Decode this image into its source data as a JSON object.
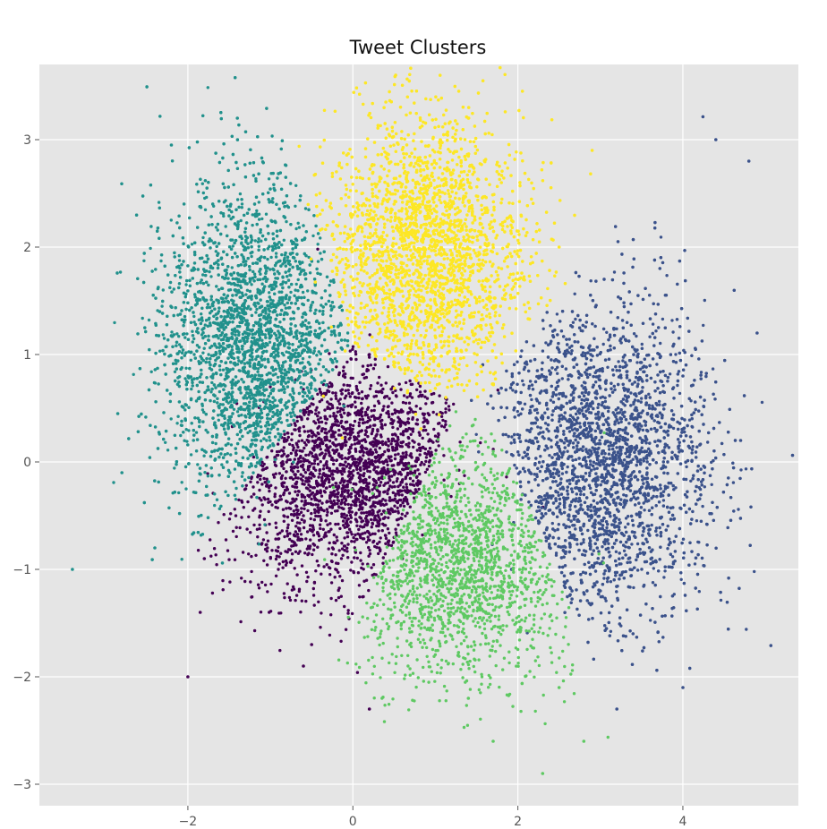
{
  "chart_data": {
    "type": "scatter",
    "title": "Tweet Clusters",
    "xlabel": "",
    "ylabel": "",
    "xlim": [
      -3.8,
      5.4
    ],
    "ylim": [
      -3.2,
      3.7
    ],
    "x_ticks": [
      -2,
      0,
      2,
      4
    ],
    "y_ticks": [
      -3,
      -2,
      -1,
      0,
      1,
      2,
      3
    ],
    "x_tick_labels": [
      "−2",
      "0",
      "2",
      "4"
    ],
    "y_tick_labels": [
      "−3",
      "−2",
      "−1",
      "0",
      "1",
      "2",
      "3"
    ],
    "grid": true,
    "legend": "none",
    "colors": {
      "background": "#e5e5e5",
      "grid": "#ffffff",
      "page": "#ffffff"
    },
    "series": [
      {
        "color": "#440154",
        "center": [
          0.0,
          -0.1
        ],
        "spread": [
          0.75,
          0.55
        ],
        "count": 2200,
        "region": "bottom-left wedge",
        "sample_points": [
          [
            -0.6,
            -0.5
          ],
          [
            0.3,
            0.3
          ],
          [
            -1.2,
            -0.3
          ],
          [
            0.6,
            -0.9
          ],
          [
            0.2,
            1.0
          ],
          [
            -1.8,
            -0.9
          ],
          [
            -0.6,
            -1.9
          ],
          [
            0.2,
            -2.3
          ],
          [
            -2.0,
            -2.0
          ],
          [
            -1.85,
            -1.4
          ],
          [
            -0.5,
            -1.7
          ]
        ]
      },
      {
        "color": "#3b528b",
        "center": [
          3.0,
          0.0
        ],
        "spread": [
          0.65,
          0.75
        ],
        "count": 4200,
        "region": "right",
        "sample_points": [
          [
            2.7,
            0.5
          ],
          [
            3.4,
            -0.3
          ],
          [
            3.0,
            -1.2
          ],
          [
            4.0,
            0.8
          ],
          [
            4.8,
            2.8
          ],
          [
            4.4,
            3.0
          ],
          [
            3.2,
            -2.3
          ],
          [
            4.0,
            -2.1
          ],
          [
            4.9,
            1.2
          ],
          [
            4.7,
            0.2
          ]
        ]
      },
      {
        "color": "#21918c",
        "center": [
          -1.2,
          1.1
        ],
        "spread": [
          0.55,
          0.75
        ],
        "count": 4000,
        "region": "left",
        "sample_points": [
          [
            -1.3,
            1.5
          ],
          [
            -1.0,
            0.4
          ],
          [
            -0.6,
            2.2
          ],
          [
            -1.7,
            0.8
          ],
          [
            -3.4,
            -1.0
          ],
          [
            -2.8,
            -0.1
          ],
          [
            -2.2,
            2.95
          ],
          [
            -1.4,
            3.2
          ],
          [
            -2.4,
            -0.8
          ],
          [
            -2.85,
            0.45
          ]
        ]
      },
      {
        "color": "#5ec962",
        "center": [
          1.3,
          -0.9
        ],
        "spread": [
          0.7,
          0.55
        ],
        "count": 1700,
        "region": "bottom-center",
        "sample_points": [
          [
            1.0,
            -0.8
          ],
          [
            1.8,
            -1.2
          ],
          [
            0.6,
            -1.4
          ],
          [
            2.3,
            -2.9
          ],
          [
            1.7,
            -2.6
          ],
          [
            2.8,
            -2.6
          ],
          [
            2.5,
            -2.1
          ],
          [
            1.4,
            -2.2
          ]
        ]
      },
      {
        "color": "#fde725",
        "center": [
          0.9,
          1.9
        ],
        "spread": [
          0.6,
          0.65
        ],
        "count": 4800,
        "region": "top-center wedge",
        "sample_points": [
          [
            0.5,
            2.4
          ],
          [
            1.2,
            1.6
          ],
          [
            0.2,
            1.3
          ],
          [
            1.8,
            2.6
          ],
          [
            0.4,
            3.35
          ],
          [
            1.4,
            3.2
          ],
          [
            2.9,
            2.9
          ],
          [
            2.5,
            2.0
          ],
          [
            1.0,
            0.8
          ]
        ]
      }
    ]
  }
}
